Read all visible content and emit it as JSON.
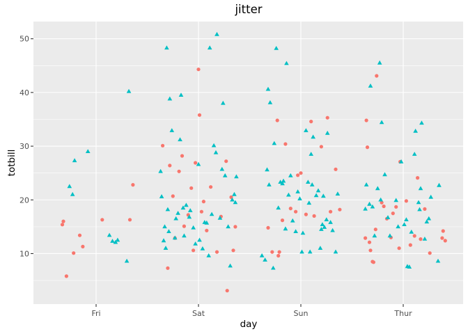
{
  "chart_data": {
    "type": "scatter",
    "title": "jitter",
    "xlabel": "day",
    "ylabel": "totbill",
    "categories": [
      "Fri",
      "Sat",
      "Sun",
      "Thur"
    ],
    "ylim": [
      0.6,
      53.2
    ],
    "yticks": [
      10,
      20,
      30,
      40,
      50
    ],
    "grid": true,
    "legend": "none",
    "colors": {
      "panel_bg": "#EBEBEB",
      "grid": "#FFFFFF",
      "female": "#F8766D",
      "male": "#00BFC4"
    },
    "series": [
      {
        "marker": "circle",
        "color": "#F8766D",
        "points": [
          [
            "Fri",
            -0.33,
            15.4
          ],
          [
            "Fri",
            -0.32,
            16.0
          ],
          [
            "Fri",
            -0.29,
            5.8
          ],
          [
            "Fri",
            -0.22,
            10.1
          ],
          [
            "Fri",
            -0.16,
            13.4
          ],
          [
            "Fri",
            -0.13,
            11.3
          ],
          [
            "Fri",
            0.06,
            16.3
          ],
          [
            "Fri",
            0.33,
            16.3
          ],
          [
            "Fri",
            0.36,
            22.8
          ],
          [
            "Sat",
            -0.35,
            30.1
          ],
          [
            "Sat",
            -0.3,
            7.3
          ],
          [
            "Sat",
            -0.28,
            26.4
          ],
          [
            "Sat",
            -0.25,
            20.7
          ],
          [
            "Sat",
            -0.23,
            12.9
          ],
          [
            "Sat",
            -0.19,
            25.3
          ],
          [
            "Sat",
            -0.16,
            28.2
          ],
          [
            "Sat",
            -0.14,
            15.1
          ],
          [
            "Sat",
            -0.1,
            17.2
          ],
          [
            "Sat",
            -0.07,
            22.2
          ],
          [
            "Sat",
            -0.05,
            10.6
          ],
          [
            "Sat",
            -0.03,
            26.9
          ],
          [
            "Sat",
            0.0,
            44.3
          ],
          [
            "Sat",
            0.01,
            35.8
          ],
          [
            "Sat",
            0.03,
            17.8
          ],
          [
            "Sat",
            0.05,
            19.7
          ],
          [
            "Sat",
            0.08,
            14.3
          ],
          [
            "Sat",
            0.12,
            22.4
          ],
          [
            "Sat",
            0.18,
            10.3
          ],
          [
            "Sat",
            0.22,
            16.9
          ],
          [
            "Sat",
            0.27,
            27.2
          ],
          [
            "Sat",
            0.28,
            3.1
          ],
          [
            "Sat",
            0.32,
            20.5
          ],
          [
            "Sat",
            0.34,
            10.6
          ],
          [
            "Sat",
            0.36,
            15.0
          ],
          [
            "Sun",
            -0.32,
            14.8
          ],
          [
            "Sun",
            -0.28,
            10.3
          ],
          [
            "Sun",
            -0.23,
            34.8
          ],
          [
            "Sun",
            -0.22,
            9.6
          ],
          [
            "Sun",
            -0.21,
            10.3
          ],
          [
            "Sun",
            -0.18,
            16.2
          ],
          [
            "Sun",
            -0.15,
            30.4
          ],
          [
            "Sun",
            -0.1,
            18.4
          ],
          [
            "Sun",
            -0.05,
            17.8
          ],
          [
            "Sun",
            -0.03,
            24.6
          ],
          [
            "Sun",
            0.0,
            25.0
          ],
          [
            "Sun",
            0.05,
            17.3
          ],
          [
            "Sun",
            0.1,
            34.6
          ],
          [
            "Sun",
            0.13,
            17.0
          ],
          [
            "Sun",
            0.2,
            29.9
          ],
          [
            "Sun",
            0.26,
            35.3
          ],
          [
            "Sun",
            0.29,
            17.8
          ],
          [
            "Sun",
            0.34,
            25.7
          ],
          [
            "Sun",
            0.38,
            18.2
          ],
          [
            "Thur",
            -0.37,
            12.9
          ],
          [
            "Thur",
            -0.36,
            34.8
          ],
          [
            "Thur",
            -0.35,
            29.8
          ],
          [
            "Thur",
            -0.33,
            12.1
          ],
          [
            "Thur",
            -0.32,
            10.6
          ],
          [
            "Thur",
            -0.3,
            8.5
          ],
          [
            "Thur",
            -0.29,
            8.4
          ],
          [
            "Thur",
            -0.27,
            14.5
          ],
          [
            "Thur",
            -0.26,
            43.1
          ],
          [
            "Thur",
            -0.21,
            19.5
          ],
          [
            "Thur",
            -0.19,
            18.8
          ],
          [
            "Thur",
            -0.16,
            16.5
          ],
          [
            "Thur",
            -0.12,
            13.0
          ],
          [
            "Thur",
            -0.1,
            17.5
          ],
          [
            "Thur",
            -0.07,
            18.7
          ],
          [
            "Thur",
            -0.04,
            11.0
          ],
          [
            "Thur",
            -0.03,
            27.1
          ],
          [
            "Thur",
            0.03,
            19.8
          ],
          [
            "Thur",
            0.07,
            11.6
          ],
          [
            "Thur",
            0.11,
            13.3
          ],
          [
            "Thur",
            0.14,
            24.1
          ],
          [
            "Thur",
            0.17,
            12.7
          ],
          [
            "Thur",
            0.21,
            18.3
          ],
          [
            "Thur",
            0.26,
            10.1
          ],
          [
            "Thur",
            0.38,
            12.9
          ],
          [
            "Thur",
            0.39,
            14.2
          ],
          [
            "Thur",
            0.41,
            12.4
          ]
        ]
      },
      {
        "marker": "triangle",
        "color": "#00BFC4",
        "points": [
          [
            "Fri",
            -0.26,
            22.5
          ],
          [
            "Fri",
            -0.23,
            21.0
          ],
          [
            "Fri",
            -0.21,
            27.3
          ],
          [
            "Fri",
            -0.08,
            29.0
          ],
          [
            "Fri",
            0.13,
            13.4
          ],
          [
            "Fri",
            0.16,
            12.3
          ],
          [
            "Fri",
            0.19,
            12.1
          ],
          [
            "Fri",
            0.21,
            12.5
          ],
          [
            "Fri",
            0.3,
            8.6
          ],
          [
            "Fri",
            0.32,
            40.2
          ],
          [
            "Sat",
            -0.37,
            25.3
          ],
          [
            "Sat",
            -0.36,
            20.6
          ],
          [
            "Sat",
            -0.34,
            12.4
          ],
          [
            "Sat",
            -0.33,
            15.0
          ],
          [
            "Sat",
            -0.32,
            11.0
          ],
          [
            "Sat",
            -0.31,
            48.3
          ],
          [
            "Sat",
            -0.3,
            18.2
          ],
          [
            "Sat",
            -0.29,
            14.1
          ],
          [
            "Sat",
            -0.28,
            38.8
          ],
          [
            "Sat",
            -0.26,
            32.9
          ],
          [
            "Sat",
            -0.23,
            12.9
          ],
          [
            "Sat",
            -0.22,
            16.5
          ],
          [
            "Sat",
            -0.2,
            17.5
          ],
          [
            "Sat",
            -0.18,
            31.2
          ],
          [
            "Sat",
            -0.17,
            39.5
          ],
          [
            "Sat",
            -0.15,
            18.5
          ],
          [
            "Sat",
            -0.14,
            13.3
          ],
          [
            "Sat",
            -0.12,
            19.0
          ],
          [
            "Sat",
            -0.09,
            16.8
          ],
          [
            "Sat",
            -0.08,
            18.0
          ],
          [
            "Sat",
            -0.05,
            14.8
          ],
          [
            "Sat",
            -0.03,
            11.8
          ],
          [
            "Sat",
            0.0,
            26.6
          ],
          [
            "Sat",
            0.01,
            12.5
          ],
          [
            "Sat",
            0.04,
            10.9
          ],
          [
            "Sat",
            0.06,
            15.8
          ],
          [
            "Sat",
            0.08,
            15.7
          ],
          [
            "Sat",
            0.1,
            9.6
          ],
          [
            "Sat",
            0.11,
            48.3
          ],
          [
            "Sat",
            0.13,
            17.3
          ],
          [
            "Sat",
            0.15,
            30.1
          ],
          [
            "Sat",
            0.17,
            28.8
          ],
          [
            "Sat",
            0.18,
            50.8
          ],
          [
            "Sat",
            0.21,
            16.6
          ],
          [
            "Sat",
            0.23,
            25.7
          ],
          [
            "Sat",
            0.24,
            38.0
          ],
          [
            "Sat",
            0.26,
            24.5
          ],
          [
            "Sat",
            0.29,
            15.0
          ],
          [
            "Sat",
            0.31,
            7.7
          ],
          [
            "Sat",
            0.33,
            20.0
          ],
          [
            "Sat",
            0.35,
            21.0
          ],
          [
            "Sat",
            0.36,
            19.5
          ],
          [
            "Sat",
            0.37,
            24.3
          ],
          [
            "Sun",
            -0.38,
            9.6
          ],
          [
            "Sun",
            -0.35,
            8.8
          ],
          [
            "Sun",
            -0.33,
            25.6
          ],
          [
            "Sun",
            -0.32,
            40.6
          ],
          [
            "Sun",
            -0.31,
            22.8
          ],
          [
            "Sun",
            -0.3,
            38.1
          ],
          [
            "Sun",
            -0.27,
            7.3
          ],
          [
            "Sun",
            -0.26,
            30.5
          ],
          [
            "Sun",
            -0.24,
            48.2
          ],
          [
            "Sun",
            -0.22,
            18.5
          ],
          [
            "Sun",
            -0.2,
            23.3
          ],
          [
            "Sun",
            -0.18,
            23.0
          ],
          [
            "Sun",
            -0.17,
            23.5
          ],
          [
            "Sun",
            -0.15,
            14.6
          ],
          [
            "Sun",
            -0.14,
            45.4
          ],
          [
            "Sun",
            -0.12,
            20.9
          ],
          [
            "Sun",
            -0.1,
            24.5
          ],
          [
            "Sun",
            -0.08,
            16.1
          ],
          [
            "Sun",
            -0.05,
            14.1
          ],
          [
            "Sun",
            -0.03,
            21.5
          ],
          [
            "Sun",
            -0.01,
            20.2
          ],
          [
            "Sun",
            0.01,
            10.3
          ],
          [
            "Sun",
            0.02,
            13.8
          ],
          [
            "Sun",
            0.05,
            32.9
          ],
          [
            "Sun",
            0.07,
            23.3
          ],
          [
            "Sun",
            0.08,
            19.4
          ],
          [
            "Sun",
            0.09,
            10.3
          ],
          [
            "Sun",
            0.1,
            28.5
          ],
          [
            "Sun",
            0.11,
            22.8
          ],
          [
            "Sun",
            0.12,
            31.7
          ],
          [
            "Sun",
            0.15,
            20.8
          ],
          [
            "Sun",
            0.17,
            21.7
          ],
          [
            "Sun",
            0.19,
            11.0
          ],
          [
            "Sun",
            0.2,
            14.5
          ],
          [
            "Sun",
            0.21,
            15.4
          ],
          [
            "Sun",
            0.22,
            20.7
          ],
          [
            "Sun",
            0.23,
            14.9
          ],
          [
            "Sun",
            0.25,
            16.3
          ],
          [
            "Sun",
            0.26,
            32.4
          ],
          [
            "Sun",
            0.29,
            15.8
          ],
          [
            "Sun",
            0.31,
            14.3
          ],
          [
            "Sun",
            0.34,
            10.3
          ],
          [
            "Sun",
            0.36,
            21.1
          ],
          [
            "Thur",
            -0.37,
            18.3
          ],
          [
            "Thur",
            -0.36,
            22.8
          ],
          [
            "Thur",
            -0.33,
            19.2
          ],
          [
            "Thur",
            -0.32,
            41.2
          ],
          [
            "Thur",
            -0.3,
            18.7
          ],
          [
            "Thur",
            -0.28,
            13.3
          ],
          [
            "Thur",
            -0.25,
            22.1
          ],
          [
            "Thur",
            -0.23,
            45.5
          ],
          [
            "Thur",
            -0.22,
            20.0
          ],
          [
            "Thur",
            -0.21,
            34.4
          ],
          [
            "Thur",
            -0.18,
            24.7
          ],
          [
            "Thur",
            -0.15,
            16.7
          ],
          [
            "Thur",
            -0.13,
            13.3
          ],
          [
            "Thur",
            -0.07,
            19.9
          ],
          [
            "Thur",
            -0.05,
            15.0
          ],
          [
            "Thur",
            -0.02,
            27.1
          ],
          [
            "Thur",
            0.01,
            15.4
          ],
          [
            "Thur",
            0.03,
            16.3
          ],
          [
            "Thur",
            0.04,
            7.6
          ],
          [
            "Thur",
            0.06,
            7.5
          ],
          [
            "Thur",
            0.08,
            14.0
          ],
          [
            "Thur",
            0.11,
            28.5
          ],
          [
            "Thur",
            0.12,
            32.8
          ],
          [
            "Thur",
            0.15,
            19.5
          ],
          [
            "Thur",
            0.16,
            18.2
          ],
          [
            "Thur",
            0.17,
            22.1
          ],
          [
            "Thur",
            0.18,
            34.3
          ],
          [
            "Thur",
            0.21,
            12.7
          ],
          [
            "Thur",
            0.23,
            15.9
          ],
          [
            "Thur",
            0.25,
            16.5
          ],
          [
            "Thur",
            0.27,
            20.5
          ],
          [
            "Thur",
            0.34,
            8.6
          ],
          [
            "Thur",
            0.35,
            22.7
          ]
        ]
      }
    ]
  }
}
